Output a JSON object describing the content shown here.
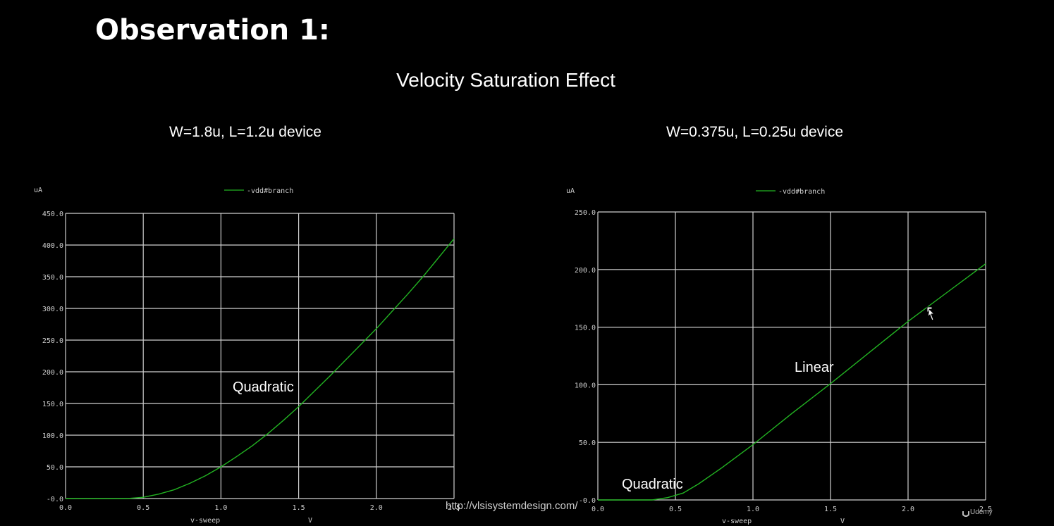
{
  "heading": "Observation 1:",
  "subtitle": "Velocity Saturation Effect",
  "url_text": "http://vlsisystemdesign.com/",
  "brand": "Udemy",
  "colors": {
    "background": "#000000",
    "grid": "#cfcfcf",
    "trace": "#22b322",
    "text": "#ffffff"
  },
  "chart_data": [
    {
      "type": "line",
      "title": "W=1.8u, L=1.2u device",
      "ylabel": "uA",
      "xlabel": "v-sweep",
      "xunit": "V",
      "legend": "top",
      "grid": true,
      "xlim": [
        0,
        2.5
      ],
      "ylim": [
        0,
        450
      ],
      "xticks": [
        "0.0",
        "0.5",
        "1.0",
        "1.5",
        "2.0",
        "2.5"
      ],
      "yticks": [
        "-0.0",
        "50.0",
        "100.0",
        "150.0",
        "200.0",
        "250.0",
        "300.0",
        "350.0",
        "400.0",
        "450.0"
      ],
      "annotation": "Quadratic",
      "series": [
        {
          "name": "-vdd#branch",
          "x": [
            0,
            0.4,
            0.5,
            0.6,
            0.7,
            0.8,
            0.9,
            1.0,
            1.1,
            1.2,
            1.3,
            1.4,
            1.5,
            1.6,
            1.7,
            1.8,
            1.9,
            2.0,
            2.1,
            2.2,
            2.3,
            2.4,
            2.5
          ],
          "y": [
            0,
            0,
            2,
            7,
            14,
            24,
            36,
            50,
            66,
            83,
            102,
            123,
            145,
            169,
            193,
            218,
            243,
            268,
            295,
            322,
            350,
            380,
            410
          ]
        }
      ]
    },
    {
      "type": "line",
      "title": "W=0.375u, L=0.25u device",
      "ylabel": "uA",
      "xlabel": "v-sweep",
      "xunit": "V",
      "legend": "top",
      "grid": true,
      "xlim": [
        0,
        2.5
      ],
      "ylim": [
        0,
        250
      ],
      "xticks": [
        "0.0",
        "0.5",
        "1.0",
        "1.5",
        "2.0",
        "2.5"
      ],
      "yticks": [
        "-0.0",
        "50.0",
        "100.0",
        "150.0",
        "200.0",
        "250.0"
      ],
      "annotations": [
        "Linear",
        "Quadratic"
      ],
      "series": [
        {
          "name": "-vdd#branch",
          "x": [
            0,
            0.35,
            0.45,
            0.55,
            0.65,
            0.8,
            0.9,
            1.0,
            1.25,
            1.5,
            1.75,
            2.0,
            2.25,
            2.5
          ],
          "y": [
            0,
            0,
            2,
            6,
            14,
            28,
            38,
            48,
            75,
            101,
            128,
            155,
            180,
            205
          ]
        }
      ]
    }
  ]
}
